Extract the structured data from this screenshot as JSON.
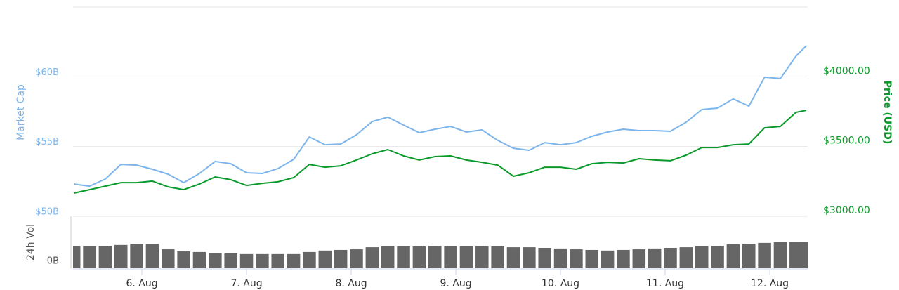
{
  "chart_data": [
    {
      "type": "line",
      "ylabel": "Market Cap",
      "y2label": "Price (USD)",
      "x": [
        5.35,
        5.5,
        5.65,
        5.8,
        5.95,
        6.1,
        6.25,
        6.4,
        6.55,
        6.7,
        6.85,
        7.0,
        7.15,
        7.3,
        7.45,
        7.6,
        7.75,
        7.9,
        8.05,
        8.2,
        8.35,
        8.5,
        8.65,
        8.8,
        8.95,
        9.1,
        9.25,
        9.4,
        9.55,
        9.7,
        9.85,
        10.0,
        10.15,
        10.3,
        10.45,
        10.6,
        10.75,
        10.9,
        11.05,
        11.2,
        11.35,
        11.5,
        11.65,
        11.8,
        11.95,
        12.1,
        12.25,
        12.35
      ],
      "xlim": [
        5.342,
        12.362
      ],
      "series": [
        {
          "color": "#7cb5ec",
          "axis": "y",
          "values": [
            52.31,
            52.16,
            52.67,
            53.72,
            53.67,
            53.37,
            53.02,
            52.41,
            53.07,
            53.93,
            53.77,
            53.12,
            53.07,
            53.42,
            54.08,
            55.69,
            55.13,
            55.18,
            55.84,
            56.79,
            57.1,
            56.54,
            55.99,
            56.24,
            56.44,
            56.04,
            56.19,
            55.44,
            54.88,
            54.73,
            55.28,
            55.13,
            55.28,
            55.74,
            56.04,
            56.24,
            56.14,
            56.14,
            56.09,
            56.74,
            57.65,
            57.75,
            58.41,
            57.9,
            59.97,
            59.87,
            61.48,
            62.23
          ]
        },
        {
          "color": "#0a9a2a",
          "axis": "y2",
          "values": [
            3166,
            3191,
            3216,
            3241,
            3241,
            3252,
            3211,
            3191,
            3231,
            3282,
            3262,
            3221,
            3236,
            3247,
            3277,
            3372,
            3352,
            3362,
            3403,
            3448,
            3478,
            3433,
            3403,
            3428,
            3433,
            3403,
            3387,
            3367,
            3287,
            3312,
            3352,
            3352,
            3337,
            3377,
            3387,
            3382,
            3413,
            3403,
            3398,
            3438,
            3493,
            3493,
            3513,
            3518,
            3634,
            3644,
            3745,
            3760
          ]
        }
      ],
      "ylim": [
        50,
        65
      ],
      "yticks": [
        {
          "value": 50,
          "label": "$50B"
        },
        {
          "value": 55,
          "label": "$55B"
        },
        {
          "value": 60,
          "label": "$60B"
        }
      ],
      "y2lim": [
        3000,
        4500
      ],
      "y2ticks": [
        {
          "value": 3000,
          "label": "$3000.00"
        },
        {
          "value": 3500,
          "label": "$3500.00"
        },
        {
          "value": 4000,
          "label": "$4000.00"
        }
      ],
      "grid": true
    },
    {
      "type": "bar",
      "ylabel": "24h Vol",
      "color": "#666666",
      "x": [
        5.35,
        5.5,
        5.65,
        5.8,
        5.95,
        6.1,
        6.25,
        6.4,
        6.55,
        6.7,
        6.85,
        7.0,
        7.15,
        7.3,
        7.45,
        7.6,
        7.75,
        7.9,
        8.05,
        8.2,
        8.35,
        8.5,
        8.65,
        8.8,
        8.95,
        9.1,
        9.25,
        9.4,
        9.55,
        9.7,
        9.85,
        10.0,
        10.15,
        10.3,
        10.45,
        10.6,
        10.75,
        10.9,
        11.05,
        11.2,
        11.35,
        11.5,
        11.65,
        11.8,
        11.95,
        12.1,
        12.25,
        12.35
      ],
      "values": [
        1.05,
        1.05,
        1.08,
        1.12,
        1.18,
        1.15,
        0.91,
        0.81,
        0.78,
        0.74,
        0.71,
        0.68,
        0.68,
        0.68,
        0.68,
        0.78,
        0.85,
        0.88,
        0.91,
        1.01,
        1.05,
        1.05,
        1.05,
        1.08,
        1.08,
        1.08,
        1.08,
        1.05,
        1.01,
        1.01,
        0.98,
        0.95,
        0.91,
        0.88,
        0.85,
        0.88,
        0.91,
        0.95,
        0.98,
        1.01,
        1.05,
        1.08,
        1.15,
        1.18,
        1.22,
        1.25,
        1.28,
        1.28
      ],
      "xlim": [
        5.342,
        12.362
      ],
      "ylim": [
        0,
        2.5
      ],
      "yticks": [
        {
          "value": 0,
          "label": "0B"
        }
      ],
      "xticks": [
        {
          "value": 6,
          "label": "6. Aug"
        },
        {
          "value": 7,
          "label": "7. Aug"
        },
        {
          "value": 8,
          "label": "8. Aug"
        },
        {
          "value": 9,
          "label": "9. Aug"
        },
        {
          "value": 10,
          "label": "10. Aug"
        },
        {
          "value": 11,
          "label": "11. Aug"
        },
        {
          "value": 12,
          "label": "12. Aug"
        }
      ]
    }
  ]
}
